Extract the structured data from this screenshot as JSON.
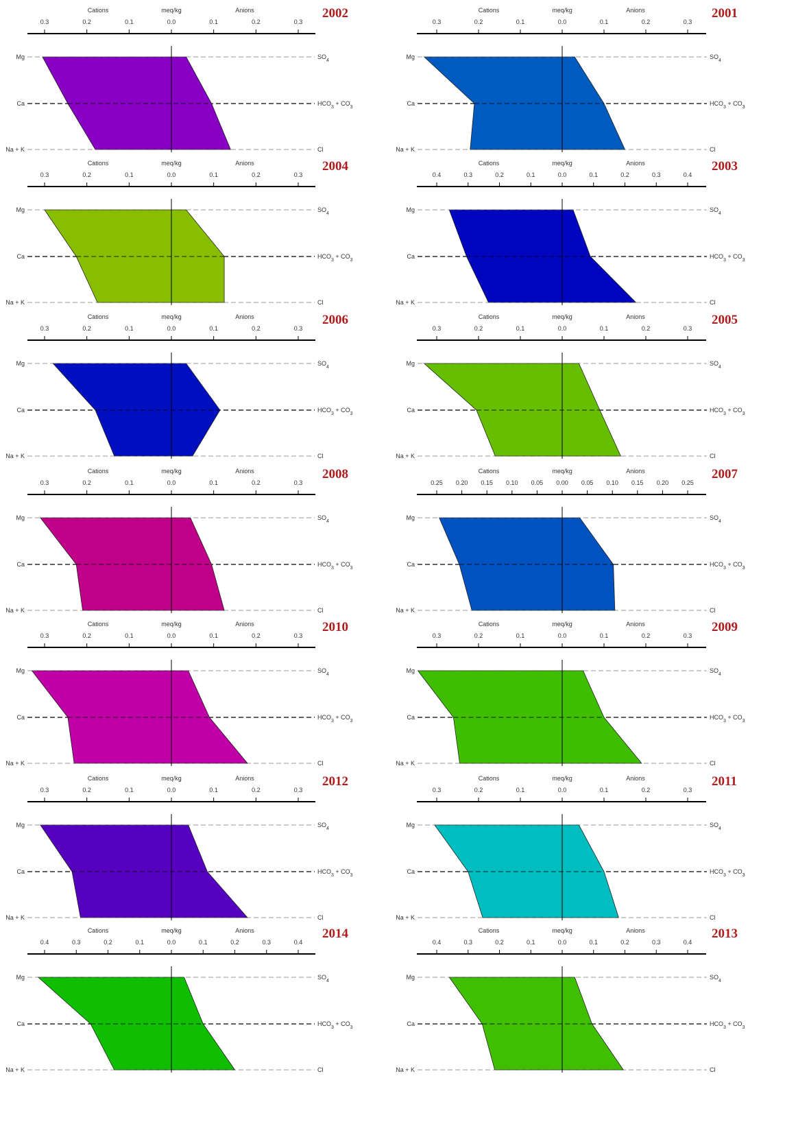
{
  "chart_data": [
    {
      "type": "stiff",
      "title": "2002",
      "header": {
        "left": "Cations",
        "center": "meq/kg",
        "right": "Anions"
      },
      "ticks": {
        "values": [
          0.3,
          0.2,
          0.1,
          0.0,
          0.1,
          0.2,
          0.3
        ],
        "labels": [
          "0.3",
          "0.2",
          "0.1",
          "0.0",
          "0.1",
          "0.2",
          "0.3"
        ]
      },
      "xlim": [
        -0.35,
        0.35
      ],
      "rows_left": [
        "Mg",
        "Ca",
        "Na + K"
      ],
      "rows_right": [
        "SO4",
        "HCO3 + CO3",
        "Cl"
      ],
      "cations": [
        0.305,
        0.245,
        0.18
      ],
      "anions": [
        0.035,
        0.095,
        0.14
      ],
      "color": "#8800c4"
    },
    {
      "type": "stiff",
      "title": "2001",
      "header": {
        "left": "Cations",
        "center": "meq/kg",
        "right": "Anions"
      },
      "ticks": {
        "values": [
          0.3,
          0.2,
          0.1,
          0.0,
          0.1,
          0.2,
          0.3
        ],
        "labels": [
          "0.3",
          "0.2",
          "0.1",
          "0.0",
          "0.1",
          "0.2",
          "0.3"
        ]
      },
      "xlim": [
        -0.35,
        0.35
      ],
      "rows_left": [
        "Mg",
        "Ca",
        "Na + K"
      ],
      "rows_right": [
        "SO4",
        "HCO3 + CO3",
        "Cl"
      ],
      "cations": [
        0.33,
        0.21,
        0.22
      ],
      "anions": [
        0.03,
        0.1,
        0.15
      ],
      "color": "#005bc0"
    },
    {
      "type": "stiff",
      "title": "2004",
      "header": {
        "left": "Cations",
        "center": "meq/kg",
        "right": "Anions"
      },
      "ticks": {
        "values": [
          0.3,
          0.2,
          0.1,
          0.0,
          0.1,
          0.2,
          0.3
        ],
        "labels": [
          "0.3",
          "0.2",
          "0.1",
          "0.0",
          "0.1",
          "0.2",
          "0.3"
        ]
      },
      "xlim": [
        -0.3,
        0.3
      ],
      "rows_left": [
        "Mg",
        "Ca",
        "Na + K"
      ],
      "rows_right": [
        "SO4",
        "HCO3 + CO3",
        "Cl"
      ],
      "cations": [
        0.3,
        0.225,
        0.175
      ],
      "anions": [
        0.035,
        0.125,
        0.125
      ],
      "color": "#88be00"
    },
    {
      "type": "stiff",
      "title": "2003",
      "header": {
        "left": "Cations",
        "center": "meq/kg",
        "right": "Anions"
      },
      "ticks": {
        "values": [
          0.4,
          0.3,
          0.2,
          0.1,
          0.0,
          0.1,
          0.2,
          0.3,
          0.4
        ],
        "labels": [
          "0.4",
          "0.3",
          "0.2",
          "0.1",
          "0.0",
          "0.1",
          "0.2",
          "0.3",
          "0.4"
        ]
      },
      "xlim": [
        -0.4,
        0.4
      ],
      "rows_left": [
        "Mg",
        "Ca",
        "Na + K"
      ],
      "rows_right": [
        "SO4",
        "HCO3 + CO3",
        "Cl"
      ],
      "cations": [
        0.36,
        0.305,
        0.235
      ],
      "anions": [
        0.035,
        0.09,
        0.235
      ],
      "color": "#0006c0"
    },
    {
      "type": "stiff",
      "title": "2006",
      "header": {
        "left": "Cations",
        "center": "meq/kg",
        "right": "Anions"
      },
      "ticks": {
        "values": [
          0.3,
          0.2,
          0.1,
          0.0,
          0.1,
          0.2,
          0.3
        ],
        "labels": [
          "0.3",
          "0.2",
          "0.1",
          "0.0",
          "0.1",
          "0.2",
          "0.3"
        ]
      },
      "xlim": [
        -0.3,
        0.3
      ],
      "rows_left": [
        "Mg",
        "Ca",
        "Na + K"
      ],
      "rows_right": [
        "SO4",
        "HCO3 + CO3",
        "Cl"
      ],
      "cations": [
        0.28,
        0.18,
        0.135
      ],
      "anions": [
        0.035,
        0.115,
        0.05
      ],
      "color": "#0010c0"
    },
    {
      "type": "stiff",
      "title": "2005",
      "header": {
        "left": "Cations",
        "center": "meq/kg",
        "right": "Anions"
      },
      "ticks": {
        "values": [
          0.3,
          0.2,
          0.1,
          0.0,
          0.1,
          0.2,
          0.3
        ],
        "labels": [
          "0.3",
          "0.2",
          "0.1",
          "0.0",
          "0.1",
          "0.2",
          "0.3"
        ]
      },
      "xlim": [
        -0.35,
        0.35
      ],
      "rows_left": [
        "Mg",
        "Ca",
        "Na + K"
      ],
      "rows_right": [
        "SO4",
        "HCO3 + CO3",
        "Cl"
      ],
      "cations": [
        0.33,
        0.205,
        0.16
      ],
      "anions": [
        0.04,
        0.09,
        0.14
      ],
      "color": "#66be00"
    },
    {
      "type": "stiff",
      "title": "2008",
      "header": {
        "left": "Cations",
        "center": "meq/kg",
        "right": "Anions"
      },
      "ticks": {
        "values": [
          0.3,
          0.2,
          0.1,
          0.0,
          0.1,
          0.2,
          0.3
        ],
        "labels": [
          "0.3",
          "0.2",
          "0.1",
          "0.0",
          "0.1",
          "0.2",
          "0.3"
        ]
      },
      "xlim": [
        -0.35,
        0.35
      ],
      "rows_left": [
        "Mg",
        "Ca",
        "Na + K"
      ],
      "rows_right": [
        "SO4",
        "HCO3 + CO3",
        "Cl"
      ],
      "cations": [
        0.31,
        0.225,
        0.21
      ],
      "anions": [
        0.045,
        0.095,
        0.125
      ],
      "color": "#c00088"
    },
    {
      "type": "stiff",
      "title": "2007",
      "header": {
        "left": "Cations",
        "center": "meq/kg",
        "right": "Anions"
      },
      "ticks": {
        "values": [
          0.25,
          0.2,
          0.15,
          0.1,
          0.05,
          0.0,
          0.05,
          0.1,
          0.15,
          0.2,
          0.25
        ],
        "labels": [
          "0.25",
          "0.20",
          "0.15",
          "0.10",
          "0.05",
          "0.00",
          "0.05",
          "0.10",
          "0.15",
          "0.20",
          "0.25"
        ]
      },
      "xlim": [
        -0.25,
        0.25
      ],
      "rows_left": [
        "Mg",
        "Ca",
        "Na + K"
      ],
      "rows_right": [
        "SO4",
        "HCO3 + CO3",
        "Cl"
      ],
      "cations": [
        0.245,
        0.205,
        0.18
      ],
      "anions": [
        0.035,
        0.102,
        0.105
      ],
      "color": "#0052c0"
    },
    {
      "type": "stiff",
      "title": "2010",
      "header": {
        "left": "Cations",
        "center": "meq/kg",
        "right": "Anions"
      },
      "ticks": {
        "values": [
          0.3,
          0.2,
          0.1,
          0.0,
          0.1,
          0.2,
          0.3
        ],
        "labels": [
          "0.3",
          "0.2",
          "0.1",
          "0.0",
          "0.1",
          "0.2",
          "0.3"
        ]
      },
      "xlim": [
        -0.35,
        0.35
      ],
      "rows_left": [
        "Mg",
        "Ca",
        "Na + K"
      ],
      "rows_right": [
        "SO4",
        "HCO3 + CO3",
        "Cl"
      ],
      "cations": [
        0.33,
        0.245,
        0.23
      ],
      "anions": [
        0.04,
        0.09,
        0.18
      ],
      "color": "#c000a6"
    },
    {
      "type": "stiff",
      "title": "2009",
      "header": {
        "left": "Cations",
        "center": "meq/kg",
        "right": "Anions"
      },
      "ticks": {
        "values": [
          0.3,
          0.2,
          0.1,
          0.0,
          0.1,
          0.2,
          0.3
        ],
        "labels": [
          "0.3",
          "0.2",
          "0.1",
          "0.0",
          "0.1",
          "0.2",
          "0.3"
        ]
      },
      "xlim": [
        -0.35,
        0.35
      ],
      "rows_left": [
        "Mg",
        "Ca",
        "Na + K"
      ],
      "rows_right": [
        "SO4",
        "HCO3 + CO3",
        "Cl"
      ],
      "cations": [
        0.345,
        0.26,
        0.245
      ],
      "anions": [
        0.05,
        0.1,
        0.19
      ],
      "color": "#3fbe00"
    },
    {
      "type": "stiff",
      "title": "2012",
      "header": {
        "left": "Cations",
        "center": "meq/kg",
        "right": "Anions"
      },
      "ticks": {
        "values": [
          0.3,
          0.2,
          0.1,
          0.0,
          0.1,
          0.2,
          0.3
        ],
        "labels": [
          "0.3",
          "0.2",
          "0.1",
          "0.0",
          "0.1",
          "0.2",
          "0.3"
        ]
      },
      "xlim": [
        -0.35,
        0.35
      ],
      "rows_left": [
        "Mg",
        "Ca",
        "Na + K"
      ],
      "rows_right": [
        "SO4",
        "HCO3 + CO3",
        "Cl"
      ],
      "cations": [
        0.31,
        0.235,
        0.215
      ],
      "anions": [
        0.04,
        0.085,
        0.18
      ],
      "color": "#5600c0"
    },
    {
      "type": "stiff",
      "title": "2011",
      "header": {
        "left": "Cations",
        "center": "meq/kg",
        "right": "Anions"
      },
      "ticks": {
        "values": [
          0.3,
          0.2,
          0.1,
          0.0,
          0.1,
          0.2,
          0.3
        ],
        "labels": [
          "0.3",
          "0.2",
          "0.1",
          "0.0",
          "0.1",
          "0.2",
          "0.3"
        ]
      },
      "xlim": [
        -0.35,
        0.35
      ],
      "rows_left": [
        "Mg",
        "Ca",
        "Na + K"
      ],
      "rows_right": [
        "SO4",
        "HCO3 + CO3",
        "Cl"
      ],
      "cations": [
        0.305,
        0.225,
        0.19
      ],
      "anions": [
        0.04,
        0.1,
        0.135
      ],
      "color": "#00bec0"
    },
    {
      "type": "stiff",
      "title": "2014",
      "header": {
        "left": "Cations",
        "center": "meq/kg",
        "right": "Anions"
      },
      "ticks": {
        "values": [
          0.4,
          0.3,
          0.2,
          0.1,
          0.0,
          0.1,
          0.2,
          0.3,
          0.4
        ],
        "labels": [
          "0.4",
          "0.3",
          "0.2",
          "0.1",
          "0.0",
          "0.1",
          "0.2",
          "0.3",
          "0.4"
        ]
      },
      "xlim": [
        -0.4,
        0.4
      ],
      "rows_left": [
        "Mg",
        "Ca",
        "Na + K"
      ],
      "rows_right": [
        "SO4",
        "HCO3 + CO3",
        "Cl"
      ],
      "cations": [
        0.42,
        0.255,
        0.18
      ],
      "anions": [
        0.04,
        0.1,
        0.2
      ],
      "color": "#10be00"
    },
    {
      "type": "stiff",
      "title": "2013",
      "header": {
        "left": "Cations",
        "center": "meq/kg",
        "right": "Anions"
      },
      "ticks": {
        "values": [
          0.4,
          0.3,
          0.2,
          0.1,
          0.0,
          0.1,
          0.2,
          0.3,
          0.4
        ],
        "labels": [
          "0.4",
          "0.3",
          "0.2",
          "0.1",
          "0.0",
          "0.1",
          "0.2",
          "0.3",
          "0.4"
        ]
      },
      "xlim": [
        -0.4,
        0.4
      ],
      "rows_left": [
        "Mg",
        "Ca",
        "Na + K"
      ],
      "rows_right": [
        "SO4",
        "HCO3 + CO3",
        "Cl"
      ],
      "cations": [
        0.36,
        0.255,
        0.215
      ],
      "anions": [
        0.04,
        0.095,
        0.195
      ],
      "color": "#40be00"
    }
  ]
}
